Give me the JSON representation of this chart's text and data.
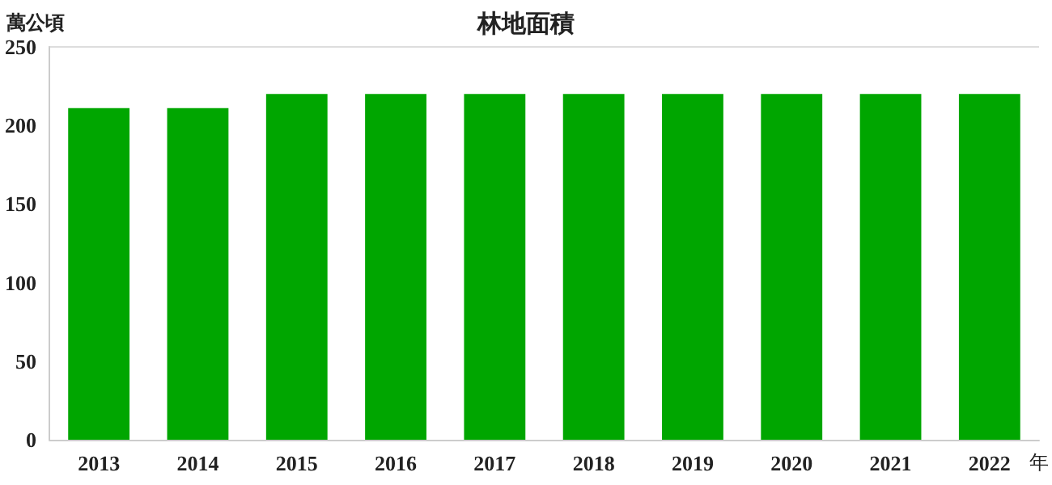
{
  "chart_data": {
    "type": "bar",
    "title": "林地面積",
    "ylabel": "萬公頃",
    "xlabel": "年",
    "categories": [
      "2013",
      "2014",
      "2015",
      "2016",
      "2017",
      "2018",
      "2019",
      "2020",
      "2021",
      "2022"
    ],
    "values": [
      211,
      211,
      220,
      220,
      220,
      220,
      220,
      220,
      220,
      220
    ],
    "color": "#00a600",
    "ylim": [
      0,
      250
    ],
    "yticks": [
      0,
      50,
      100,
      150,
      200,
      250
    ],
    "grid": false
  }
}
